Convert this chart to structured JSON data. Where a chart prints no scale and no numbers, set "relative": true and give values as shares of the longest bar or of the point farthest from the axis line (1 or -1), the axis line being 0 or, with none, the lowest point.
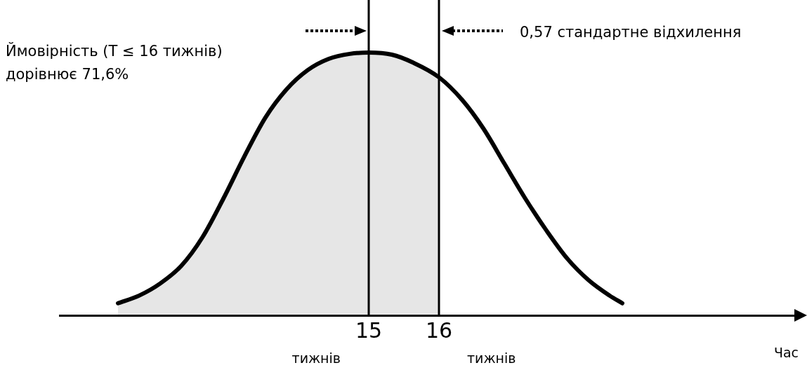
{
  "chart_data": {
    "type": "line",
    "relative": true,
    "xlabel": "Час",
    "x": [
      11.43,
      11.73,
      12.03,
      12.33,
      12.63,
      12.93,
      13.23,
      13.53,
      13.83,
      14.13,
      14.43,
      14.73,
      15,
      15.33,
      15.63,
      16,
      16.33,
      16.63,
      16.93,
      17.23,
      17.53,
      17.83,
      18.13,
      18.43,
      18.61
    ],
    "series": [
      {
        "color": "#000000",
        "values": [
          0.046,
          0.075,
          0.121,
          0.188,
          0.296,
          0.444,
          0.605,
          0.753,
          0.86,
          0.933,
          0.976,
          0.995,
          1,
          0.992,
          0.962,
          0.906,
          0.82,
          0.712,
          0.578,
          0.444,
          0.323,
          0.215,
          0.134,
          0.075,
          0.046
        ]
      }
    ],
    "xlim": [
      10.6,
      21.1
    ],
    "xticks": [
      15,
      16
    ],
    "tick_labels": "x",
    "marker": "none",
    "legend": false,
    "ref_lines": [
      {
        "axis": "x",
        "value": 15,
        "color": "#000000"
      },
      {
        "axis": "x",
        "value": 16,
        "color": "#000000"
      }
    ],
    "bands": [
      {
        "axis": "x",
        "from": 11.43,
        "to": 16,
        "color": "#555555"
      }
    ],
    "annotations": [
      "Ймовірність (T ≤ 16 тижнів)\nдорівнює 71,6%",
      "0,57 стандартне відхилення",
      "тижнів",
      "тижнів"
    ]
  }
}
